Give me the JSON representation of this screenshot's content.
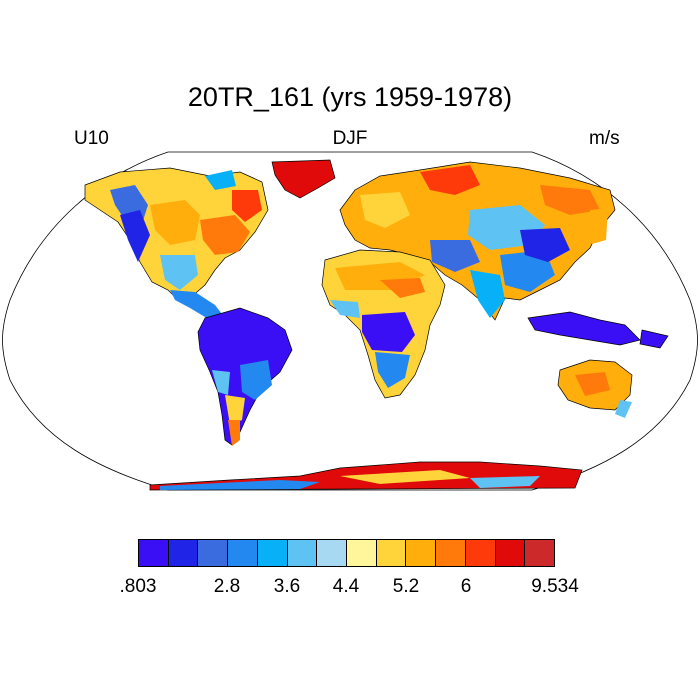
{
  "header": {
    "title": "20TR_161 (yrs 1959-1978)",
    "left_label": "U10",
    "center_label": "DJF",
    "right_label": "m/s"
  },
  "map": {
    "projection": "robinson",
    "ocean_color": "#ffffff",
    "coastline_color": "#000000"
  },
  "colorbar": {
    "colors": [
      "#3a0ff5",
      "#1f24e6",
      "#3a6ce0",
      "#2389f0",
      "#08b0f7",
      "#5ec3f2",
      "#a8d9f2",
      "#fff59a",
      "#ffd43a",
      "#ffae0c",
      "#ff7a0a",
      "#ff3a0a",
      "#e00a0a",
      "#cc2a2a"
    ],
    "tick_labels": [
      ".803",
      "2.8",
      "3.6",
      "4.4",
      "5.2",
      "6",
      "9.534"
    ]
  }
}
